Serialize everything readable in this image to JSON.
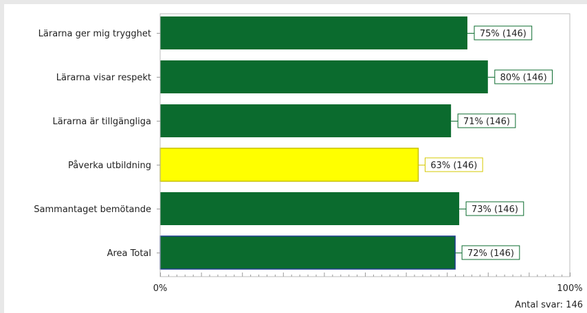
{
  "chart_data": {
    "type": "bar",
    "orientation": "horizontal",
    "categories": [
      "Lärarna ger mig trygghet",
      "Lärarna visar respekt",
      "Lärarna är tillgängliga",
      "Påverka utbildning",
      "Sammantaget bemötande",
      "Area Total"
    ],
    "values": [
      75,
      80,
      71,
      63,
      73,
      72
    ],
    "value_labels": [
      "75% (146)",
      "80% (146)",
      "71% (146)",
      "63% (146)",
      "73% (146)",
      "72% (146)"
    ],
    "bar_colors": [
      "#0b6b2e",
      "#0b6b2e",
      "#0b6b2e",
      "#ffff00",
      "#0b6b2e",
      "#0b6b2e"
    ],
    "label_border_colors": [
      "#0b6b2e",
      "#0b6b2e",
      "#0b6b2e",
      "#d6c800",
      "#0b6b2e",
      "#0b6b2e"
    ],
    "highlight_border": [
      "",
      "",
      "",
      "#c8c000",
      "",
      "#1f3f8f"
    ],
    "xlim": [
      0,
      100
    ],
    "xtick_labels": [
      "0%",
      "100%"
    ],
    "grid": false
  },
  "footer": {
    "text": "Antal svar: 146"
  }
}
